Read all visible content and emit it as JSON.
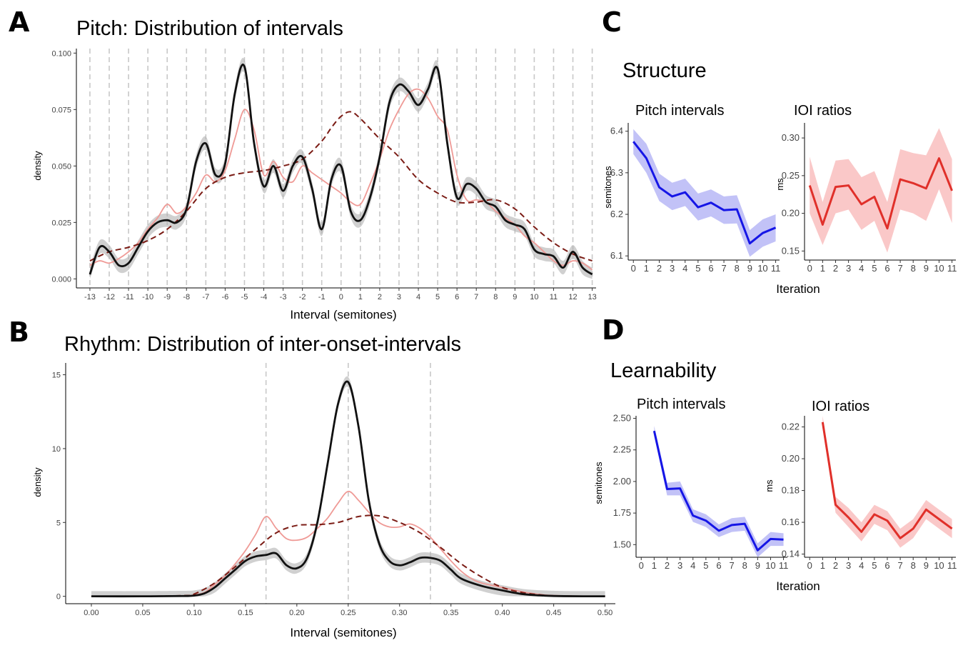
{
  "panel_labels": {
    "a": "A",
    "b": "B",
    "c": "C",
    "d": "D"
  },
  "section_titles": {
    "structure": "Structure",
    "learnability": "Learnability"
  },
  "colors": {
    "black_line": "#111111",
    "pink_line": "#ef9a96",
    "dashed_line": "#7b1c15",
    "band": "#b0b0b0",
    "blue_line": "#1515e6",
    "blue_band": "#9a9af2",
    "red_line": "#e0302a",
    "red_band": "#f6a3a3",
    "grid_dash": "#c8c8c8"
  },
  "chart_data": [
    {
      "id": "A",
      "type": "line",
      "title": "Pitch: Distribution of intervals",
      "xlabel": "Interval (semitones)",
      "ylabel": "density",
      "xlim": [
        -13.7,
        13.2
      ],
      "ylim": [
        -0.004,
        0.102
      ],
      "xticks": [
        -13,
        -12,
        -11,
        -10,
        -9,
        -8,
        -7,
        -6,
        -5,
        -4,
        -3,
        -2,
        -1,
        0,
        1,
        2,
        3,
        4,
        5,
        6,
        7,
        8,
        9,
        10,
        11,
        12,
        13
      ],
      "yticks": [
        0,
        0.025,
        0.05,
        0.075,
        0.1
      ],
      "ytick_labels": [
        "0.000",
        "0.025",
        "0.050",
        "0.075",
        "0.100"
      ],
      "vlines": [
        -13,
        -12,
        -11,
        -10,
        -9,
        -8,
        -7,
        -6,
        -5,
        -4,
        -3,
        -2,
        -1,
        0,
        1,
        2,
        3,
        4,
        5,
        6,
        7,
        8,
        9,
        10,
        11,
        12,
        13
      ],
      "band_width": 0.003,
      "series": [
        {
          "style": "pink",
          "x": [
            -13,
            -12.5,
            -12,
            -11.5,
            -11,
            -10.5,
            -10,
            -9.5,
            -9,
            -8.5,
            -8,
            -7.5,
            -7,
            -6.5,
            -6,
            -5.5,
            -5,
            -4.5,
            -4,
            -3.5,
            -3,
            -2.5,
            -2,
            -1.5,
            -1,
            -0.5,
            0,
            0.5,
            1,
            1.5,
            2,
            2.5,
            3,
            3.5,
            4,
            4.5,
            5,
            5.5,
            6,
            6.5,
            7,
            7.5,
            8,
            8.5,
            9,
            9.5,
            10,
            10.5,
            11,
            11.5,
            12,
            12.5,
            13
          ],
          "y": [
            0.006,
            0.008,
            0.007,
            0.009,
            0.012,
            0.016,
            0.022,
            0.027,
            0.033,
            0.029,
            0.032,
            0.038,
            0.046,
            0.043,
            0.048,
            0.062,
            0.075,
            0.066,
            0.046,
            0.052,
            0.045,
            0.043,
            0.05,
            0.047,
            0.044,
            0.041,
            0.038,
            0.034,
            0.033,
            0.042,
            0.053,
            0.066,
            0.075,
            0.082,
            0.084,
            0.08,
            0.072,
            0.066,
            0.046,
            0.035,
            0.035,
            0.034,
            0.03,
            0.027,
            0.024,
            0.019,
            0.016,
            0.012,
            0.008,
            0.006,
            0.008,
            0.007,
            0.004
          ]
        },
        {
          "style": "dashed",
          "x": [
            -13,
            -12,
            -11,
            -10,
            -9,
            -8,
            -7,
            -6,
            -5,
            -4,
            -3,
            -2,
            -1,
            -0.5,
            0,
            0.5,
            1,
            2,
            3,
            4,
            5,
            6,
            7,
            8,
            9,
            10,
            11,
            12,
            13
          ],
          "y": [
            0.008,
            0.012,
            0.014,
            0.017,
            0.022,
            0.03,
            0.04,
            0.045,
            0.047,
            0.048,
            0.05,
            0.053,
            0.061,
            0.067,
            0.072,
            0.074,
            0.071,
            0.062,
            0.054,
            0.044,
            0.038,
            0.034,
            0.034,
            0.035,
            0.031,
            0.023,
            0.016,
            0.011,
            0.008
          ]
        },
        {
          "style": "black",
          "band": true,
          "x": [
            -13,
            -12.5,
            -12,
            -11.5,
            -11,
            -10.5,
            -10,
            -9.5,
            -9,
            -8.5,
            -8,
            -7.5,
            -7,
            -6.5,
            -6,
            -5.5,
            -5,
            -4.5,
            -4,
            -3.5,
            -3,
            -2.5,
            -2,
            -1.5,
            -1,
            -0.5,
            0,
            0.5,
            1,
            1.5,
            2,
            2.5,
            3,
            3.5,
            4,
            4.5,
            5,
            5.5,
            6,
            6.5,
            7,
            7.5,
            8,
            8.5,
            9,
            9.5,
            10,
            10.5,
            11,
            11.5,
            12,
            12.5,
            13
          ],
          "y": [
            0.002,
            0.014,
            0.012,
            0.006,
            0.007,
            0.014,
            0.021,
            0.025,
            0.026,
            0.025,
            0.031,
            0.052,
            0.06,
            0.046,
            0.051,
            0.082,
            0.094,
            0.06,
            0.041,
            0.05,
            0.039,
            0.05,
            0.054,
            0.04,
            0.022,
            0.044,
            0.05,
            0.03,
            0.026,
            0.036,
            0.054,
            0.078,
            0.086,
            0.083,
            0.077,
            0.084,
            0.093,
            0.06,
            0.036,
            0.042,
            0.04,
            0.034,
            0.032,
            0.026,
            0.024,
            0.022,
            0.013,
            0.011,
            0.01,
            0.005,
            0.012,
            0.005,
            0.002
          ]
        }
      ]
    },
    {
      "id": "B",
      "type": "line",
      "title": "Rhythm: Distribution of inter-onset-intervals",
      "xlabel": "Interval (semitones)",
      "ylabel": "density",
      "xlim": [
        -0.025,
        0.51
      ],
      "ylim": [
        -0.5,
        15.8
      ],
      "xticks": [
        0,
        0.05,
        0.1,
        0.15,
        0.2,
        0.25,
        0.3,
        0.35,
        0.4,
        0.45,
        0.5
      ],
      "xtick_labels": [
        "0.00",
        "0.05",
        "0.10",
        "0.15",
        "0.20",
        "0.25",
        "0.30",
        "0.35",
        "0.40",
        "0.45",
        "0.50"
      ],
      "yticks": [
        0,
        5,
        10,
        15
      ],
      "vlines": [
        0.17,
        0.25,
        0.33
      ],
      "band_width": 0.35,
      "series": [
        {
          "style": "pink",
          "x": [
            0,
            0.05,
            0.09,
            0.1,
            0.11,
            0.12,
            0.13,
            0.14,
            0.15,
            0.16,
            0.17,
            0.18,
            0.19,
            0.2,
            0.21,
            0.22,
            0.23,
            0.24,
            0.25,
            0.26,
            0.27,
            0.28,
            0.29,
            0.3,
            0.31,
            0.32,
            0.33,
            0.34,
            0.35,
            0.36,
            0.37,
            0.38,
            0.4,
            0.42,
            0.44,
            0.46,
            0.5
          ],
          "y": [
            0,
            0,
            0.02,
            0.1,
            0.25,
            0.8,
            1.4,
            2.2,
            3.1,
            4.2,
            5.4,
            4.6,
            3.9,
            3.8,
            4.0,
            4.6,
            5.3,
            6.3,
            7.1,
            6.5,
            5.7,
            5.0,
            4.7,
            4.7,
            4.9,
            4.6,
            4.0,
            3.2,
            2.4,
            1.7,
            1.2,
            0.9,
            0.6,
            0.3,
            0.1,
            0.03,
            0
          ]
        },
        {
          "style": "dashed",
          "x": [
            0,
            0.05,
            0.09,
            0.1,
            0.12,
            0.14,
            0.16,
            0.18,
            0.2,
            0.22,
            0.24,
            0.26,
            0.28,
            0.3,
            0.32,
            0.34,
            0.36,
            0.38,
            0.4,
            0.42,
            0.44,
            0.46,
            0.5
          ],
          "y": [
            0,
            0,
            0.05,
            0.15,
            0.9,
            2.0,
            3.2,
            4.3,
            4.8,
            4.85,
            5.0,
            5.4,
            5.45,
            5.0,
            4.3,
            3.3,
            2.2,
            1.3,
            0.6,
            0.25,
            0.08,
            0.02,
            0
          ]
        },
        {
          "style": "black",
          "band": true,
          "x": [
            0,
            0.05,
            0.09,
            0.1,
            0.11,
            0.12,
            0.13,
            0.14,
            0.15,
            0.16,
            0.17,
            0.18,
            0.19,
            0.2,
            0.21,
            0.22,
            0.23,
            0.24,
            0.25,
            0.26,
            0.27,
            0.28,
            0.29,
            0.3,
            0.31,
            0.32,
            0.33,
            0.34,
            0.35,
            0.36,
            0.38,
            0.4,
            0.42,
            0.44,
            0.46,
            0.5
          ],
          "y": [
            0,
            0,
            0.02,
            0.05,
            0.2,
            0.6,
            1.2,
            1.8,
            2.4,
            2.7,
            2.8,
            2.9,
            2.1,
            1.9,
            2.6,
            5.0,
            9.0,
            13.0,
            14.5,
            11.5,
            6.5,
            3.6,
            2.4,
            2.1,
            2.3,
            2.6,
            2.6,
            2.4,
            1.8,
            1.2,
            0.7,
            0.4,
            0.15,
            0.05,
            0.01,
            0
          ]
        }
      ]
    },
    {
      "id": "C1",
      "type": "line",
      "title": "Pitch intervals",
      "ylabel": "semitones",
      "xlim": [
        -0.4,
        11.3
      ],
      "ylim": [
        6.09,
        6.42
      ],
      "xticks": [
        0,
        1,
        2,
        3,
        4,
        5,
        6,
        7,
        8,
        9,
        10,
        11
      ],
      "yticks": [
        6.1,
        6.2,
        6.3,
        6.4
      ],
      "color": "blue",
      "x": [
        0,
        1,
        2,
        3,
        4,
        5,
        6,
        7,
        8,
        9,
        10,
        11
      ],
      "y": [
        6.375,
        6.335,
        6.265,
        6.243,
        6.253,
        6.217,
        6.228,
        6.21,
        6.212,
        6.13,
        6.155,
        6.168
      ],
      "lower": [
        6.345,
        6.3,
        6.232,
        6.21,
        6.22,
        6.185,
        6.195,
        6.177,
        6.178,
        6.098,
        6.122,
        6.135
      ],
      "upper": [
        6.405,
        6.37,
        6.298,
        6.276,
        6.286,
        6.25,
        6.26,
        6.243,
        6.246,
        6.162,
        6.188,
        6.2
      ]
    },
    {
      "id": "C2",
      "type": "line",
      "title": "IOI ratios",
      "ylabel": "ms",
      "xlim": [
        -0.4,
        11.3
      ],
      "ylim": [
        0.138,
        0.32
      ],
      "xticks": [
        0,
        1,
        2,
        3,
        4,
        5,
        6,
        7,
        8,
        9,
        10,
        11
      ],
      "yticks": [
        0.15,
        0.2,
        0.25,
        0.3
      ],
      "ytick_labels": [
        "0.15",
        "0.20",
        "0.25",
        "0.30"
      ],
      "color": "red",
      "x": [
        0,
        1,
        2,
        3,
        4,
        5,
        6,
        7,
        8,
        9,
        10,
        11
      ],
      "y": [
        0.237,
        0.185,
        0.235,
        0.237,
        0.212,
        0.222,
        0.18,
        0.245,
        0.24,
        0.233,
        0.273,
        0.23
      ],
      "lower": [
        0.2,
        0.158,
        0.2,
        0.205,
        0.178,
        0.19,
        0.148,
        0.205,
        0.2,
        0.19,
        0.232,
        0.187
      ],
      "upper": [
        0.275,
        0.215,
        0.27,
        0.272,
        0.248,
        0.256,
        0.215,
        0.285,
        0.28,
        0.277,
        0.313,
        0.272
      ]
    },
    {
      "id": "D1",
      "type": "line",
      "title": "Pitch intervals",
      "ylabel": "semitones",
      "xlim": [
        -0.4,
        11.3
      ],
      "ylim": [
        1.4,
        2.52
      ],
      "xticks": [
        0,
        1,
        2,
        3,
        4,
        5,
        6,
        7,
        8,
        9,
        10,
        11
      ],
      "yticks": [
        1.5,
        1.75,
        2.0,
        2.25,
        2.5
      ],
      "ytick_labels": [
        "1.50",
        "1.75",
        "2.00",
        "2.25",
        "2.50"
      ],
      "color": "blue",
      "x": [
        1,
        2,
        3,
        4,
        5,
        6,
        7,
        8,
        9,
        10,
        11
      ],
      "y": [
        2.4,
        1.94,
        1.945,
        1.73,
        1.69,
        1.61,
        1.655,
        1.665,
        1.455,
        1.545,
        1.54
      ],
      "lower": [
        2.36,
        1.89,
        1.89,
        1.68,
        1.64,
        1.56,
        1.6,
        1.61,
        1.4,
        1.49,
        1.49
      ],
      "upper": [
        2.44,
        1.99,
        2.0,
        1.78,
        1.74,
        1.66,
        1.71,
        1.72,
        1.51,
        1.6,
        1.59
      ]
    },
    {
      "id": "D2",
      "type": "line",
      "title": "IOI ratios",
      "ylabel": "ms",
      "xlim": [
        -0.4,
        11.3
      ],
      "ylim": [
        0.138,
        0.227
      ],
      "xticks": [
        0,
        1,
        2,
        3,
        4,
        5,
        6,
        7,
        8,
        9,
        10,
        11
      ],
      "yticks": [
        0.14,
        0.16,
        0.18,
        0.2,
        0.22
      ],
      "ytick_labels": [
        "0.14",
        "0.16",
        "0.18",
        "0.20",
        "0.22"
      ],
      "color": "red",
      "x": [
        1,
        2,
        3,
        4,
        5,
        6,
        7,
        8,
        9,
        10,
        11
      ],
      "y": [
        0.223,
        0.171,
        0.163,
        0.154,
        0.165,
        0.161,
        0.15,
        0.156,
        0.168,
        0.162,
        0.156
      ],
      "lower": [
        0.219,
        0.166,
        0.157,
        0.148,
        0.159,
        0.155,
        0.144,
        0.15,
        0.162,
        0.156,
        0.15
      ],
      "upper": [
        0.227,
        0.176,
        0.169,
        0.16,
        0.171,
        0.167,
        0.156,
        0.162,
        0.174,
        0.168,
        0.162
      ]
    }
  ],
  "shared_xlabels": {
    "structure": "Iteration",
    "learnability": "Iteration"
  }
}
